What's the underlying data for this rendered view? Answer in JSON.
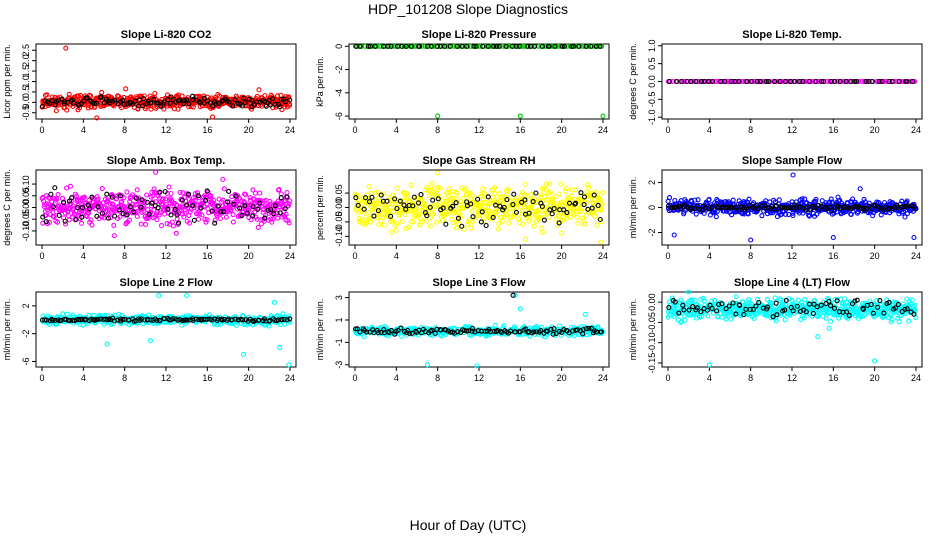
{
  "page": {
    "title": "HDP_101208  Slope Diagnostics",
    "xlabel": "Hour of Day (UTC)"
  },
  "colors": {
    "black": "#000000",
    "red": "#ff0000",
    "green": "#00cc00",
    "magenta": "#ff00ff",
    "yellow": "#ffff00",
    "blue": "#0000ff",
    "cyan": "#00ffff"
  },
  "chart_data": [
    {
      "type": "scatter",
      "title": "Slope Li-820 CO2",
      "ylabel": "Licor ppm per min.",
      "xlim": [
        0,
        24
      ],
      "xticks": [
        0,
        4,
        8,
        12,
        16,
        20,
        24
      ],
      "ylim": [
        -0.8,
        2.8
      ],
      "yticks": [
        "-0.5",
        "0.0",
        "0.5",
        "1.0",
        "1.5",
        "2.0",
        "2.5"
      ],
      "ytick_values": [
        -0.5,
        0.0,
        0.5,
        1.0,
        1.5,
        2.0,
        2.5
      ],
      "series": [
        {
          "name": "red",
          "color": "red",
          "band": [
            -0.45,
            0.5
          ],
          "count": 520,
          "seed": 11,
          "points": [
            [
              2.3,
              2.6
            ],
            [
              5.3,
              -0.75
            ],
            [
              8.1,
              0.65
            ],
            [
              16.5,
              -0.7
            ],
            [
              21.0,
              0.6
            ]
          ]
        },
        {
          "name": "black",
          "color": "black",
          "band": [
            -0.3,
            0.35
          ],
          "count": 110,
          "seed": 12,
          "points": []
        }
      ]
    },
    {
      "type": "scatter",
      "title": "Slope Li-820 Pressure",
      "ylabel": "kPa per min.",
      "xlim": [
        0,
        24
      ],
      "xticks": [
        0,
        4,
        8,
        12,
        16,
        20,
        24
      ],
      "ylim": [
        -6.25,
        0.2
      ],
      "yticks": [
        "0",
        "-2",
        "-4",
        "-6"
      ],
      "ytick_values": [
        0,
        -2,
        -4,
        -6
      ],
      "series": [
        {
          "name": "green",
          "color": "green",
          "band": [
            0,
            0
          ],
          "count": 120,
          "seed": 21,
          "points": [
            [
              8.0,
              -6.0
            ],
            [
              16.0,
              -6.0
            ],
            [
              24.0,
              -6.0
            ]
          ]
        },
        {
          "name": "black",
          "color": "black",
          "band": [
            0,
            0
          ],
          "count": 50,
          "seed": 22,
          "points": []
        }
      ]
    },
    {
      "type": "scatter",
      "title": "Slope Li-820 Temp.",
      "ylabel": "degrees C per min.",
      "xlim": [
        0,
        24
      ],
      "xticks": [
        0,
        4,
        8,
        12,
        16,
        20,
        24
      ],
      "ylim": [
        -1.05,
        1.05
      ],
      "yticks": [
        "1.0",
        "0.5",
        "0.0",
        "-0.5",
        "-1.0"
      ],
      "ytick_values": [
        1.0,
        0.5,
        0.0,
        -0.5,
        -1.0
      ],
      "series": [
        {
          "name": "magenta",
          "color": "magenta",
          "band": [
            0,
            0
          ],
          "count": 120,
          "seed": 31,
          "points": []
        },
        {
          "name": "black",
          "color": "black",
          "band": [
            0,
            0
          ],
          "count": 50,
          "seed": 32,
          "points": []
        }
      ]
    },
    {
      "type": "scatter",
      "title": "Slope Amb. Box Temp.",
      "ylabel": "degrees C per min.",
      "xlim": [
        0,
        24
      ],
      "xticks": [
        0,
        4,
        8,
        12,
        16,
        20,
        24
      ],
      "ylim": [
        -0.16,
        0.16
      ],
      "yticks": [
        "0.10",
        "0.05",
        "0.00",
        "-0.05",
        "-0.10"
      ],
      "ytick_values": [
        0.1,
        0.05,
        0.0,
        -0.05,
        -0.1
      ],
      "series": [
        {
          "name": "magenta",
          "color": "magenta",
          "band": [
            -0.1,
            0.1
          ],
          "count": 560,
          "seed": 41,
          "points": [
            [
              11.0,
              0.15
            ],
            [
              7.0,
              -0.12
            ],
            [
              13.0,
              -0.11
            ],
            [
              17.5,
              0.12
            ]
          ]
        },
        {
          "name": "black",
          "color": "black",
          "band": [
            -0.1,
            0.1
          ],
          "count": 80,
          "seed": 42,
          "points": []
        }
      ]
    },
    {
      "type": "scatter",
      "title": "Slope Gas Stream RH",
      "ylabel": "percent per min.",
      "xlim": [
        0,
        24
      ],
      "xticks": [
        0,
        4,
        8,
        12,
        16,
        20,
        24
      ],
      "ylim": [
        -0.13,
        0.13
      ],
      "yticks": [
        "0.05",
        "0.00",
        "-0.05",
        "-0.10"
      ],
      "ytick_values": [
        0.05,
        0.0,
        -0.05,
        -0.1
      ],
      "series": [
        {
          "name": "yellow",
          "color": "yellow",
          "band": [
            -0.1,
            0.1
          ],
          "count": 560,
          "seed": 51,
          "points": [
            [
              8.0,
              0.12
            ],
            [
              23.8,
              -0.12
            ],
            [
              16.5,
              -0.11
            ]
          ]
        },
        {
          "name": "black",
          "color": "black",
          "band": [
            -0.08,
            0.09
          ],
          "count": 80,
          "seed": 52,
          "points": []
        }
      ]
    },
    {
      "type": "scatter",
      "title": "Slope Sample Flow",
      "ylabel": "ml/min per min.",
      "xlim": [
        0,
        24
      ],
      "xticks": [
        0,
        4,
        8,
        12,
        16,
        20,
        24
      ],
      "ylim": [
        -3.0,
        3.0
      ],
      "yticks": [
        "2",
        "0",
        "-2"
      ],
      "ytick_values": [
        2,
        0,
        -2
      ],
      "series": [
        {
          "name": "blue",
          "color": "blue",
          "band": [
            -0.9,
            0.9
          ],
          "count": 520,
          "seed": 61,
          "points": [
            [
              12.1,
              2.6
            ],
            [
              8.0,
              -2.6
            ],
            [
              16.0,
              -2.4
            ],
            [
              23.8,
              -2.4
            ],
            [
              0.6,
              -2.2
            ],
            [
              18.6,
              1.5
            ]
          ]
        },
        {
          "name": "black",
          "color": "black",
          "band": [
            -0.3,
            0.3
          ],
          "count": 120,
          "seed": 62,
          "points": []
        }
      ]
    },
    {
      "type": "scatter",
      "title": "Slope Line 2 Flow",
      "ylabel": "ml/min per min.",
      "xlim": [
        0,
        24
      ],
      "xticks": [
        0,
        4,
        8,
        12,
        16,
        20,
        24
      ],
      "ylim": [
        -6.8,
        4.0
      ],
      "yticks": [
        "2",
        "-2",
        "-6"
      ],
      "ytick_values": [
        2,
        -2,
        -6
      ],
      "series": [
        {
          "name": "cyan",
          "color": "cyan",
          "band": [
            -1.0,
            1.0
          ],
          "count": 400,
          "seed": 71,
          "points": [
            [
              11.3,
              3.5
            ],
            [
              14.0,
              3.5
            ],
            [
              22.5,
              2.5
            ],
            [
              19.5,
              -5.0
            ],
            [
              23.0,
              -4.0
            ],
            [
              23.9,
              -6.5
            ],
            [
              6.3,
              -3.5
            ],
            [
              10.5,
              -3.0
            ]
          ]
        },
        {
          "name": "black",
          "color": "black",
          "band": [
            -0.3,
            0.3
          ],
          "count": 120,
          "seed": 72,
          "points": []
        }
      ]
    },
    {
      "type": "scatter",
      "title": "Slope Line 3 Flow",
      "ylabel": "ml/min per min.",
      "xlim": [
        0,
        24
      ],
      "xticks": [
        0,
        4,
        8,
        12,
        16,
        20,
        24
      ],
      "ylim": [
        -3.2,
        3.5
      ],
      "yticks": [
        "3",
        "1",
        "-1",
        "-3"
      ],
      "ytick_values": [
        3,
        1,
        -1,
        -3
      ],
      "series": [
        {
          "name": "cyan",
          "color": "cyan",
          "band": [
            -0.6,
            0.6
          ],
          "count": 420,
          "seed": 81,
          "points": [
            [
              7.0,
              -3.0
            ],
            [
              11.8,
              -3.1
            ],
            [
              15.5,
              3.2
            ],
            [
              16.0,
              2.0
            ],
            [
              22.3,
              1.5
            ]
          ]
        },
        {
          "name": "black",
          "color": "black",
          "band": [
            -0.35,
            0.35
          ],
          "count": 110,
          "seed": 82,
          "points": [
            [
              15.3,
              3.2
            ]
          ]
        }
      ]
    },
    {
      "type": "scatter",
      "title": "Slope Line 4 (LT) Flow",
      "ylabel": "ml/min per min.",
      "xlim": [
        0,
        24
      ],
      "xticks": [
        0,
        4,
        8,
        12,
        16,
        20,
        24
      ],
      "ylim": [
        -0.16,
        0.025
      ],
      "yticks": [
        "0.00",
        "-0.05",
        "-0.10",
        "-0.15"
      ],
      "ytick_values": [
        0.0,
        -0.05,
        -0.1,
        -0.15
      ],
      "series": [
        {
          "name": "cyan",
          "color": "cyan",
          "band": [
            -0.055,
            0.02
          ],
          "count": 560,
          "seed": 91,
          "points": [
            [
              4.0,
              -0.155
            ],
            [
              20.0,
              -0.145
            ],
            [
              2.0,
              0.025
            ],
            [
              14.5,
              -0.085
            ],
            [
              15.6,
              -0.065
            ]
          ]
        },
        {
          "name": "black",
          "color": "black",
          "band": [
            -0.045,
            0.018
          ],
          "count": 80,
          "seed": 92,
          "points": []
        }
      ]
    }
  ]
}
